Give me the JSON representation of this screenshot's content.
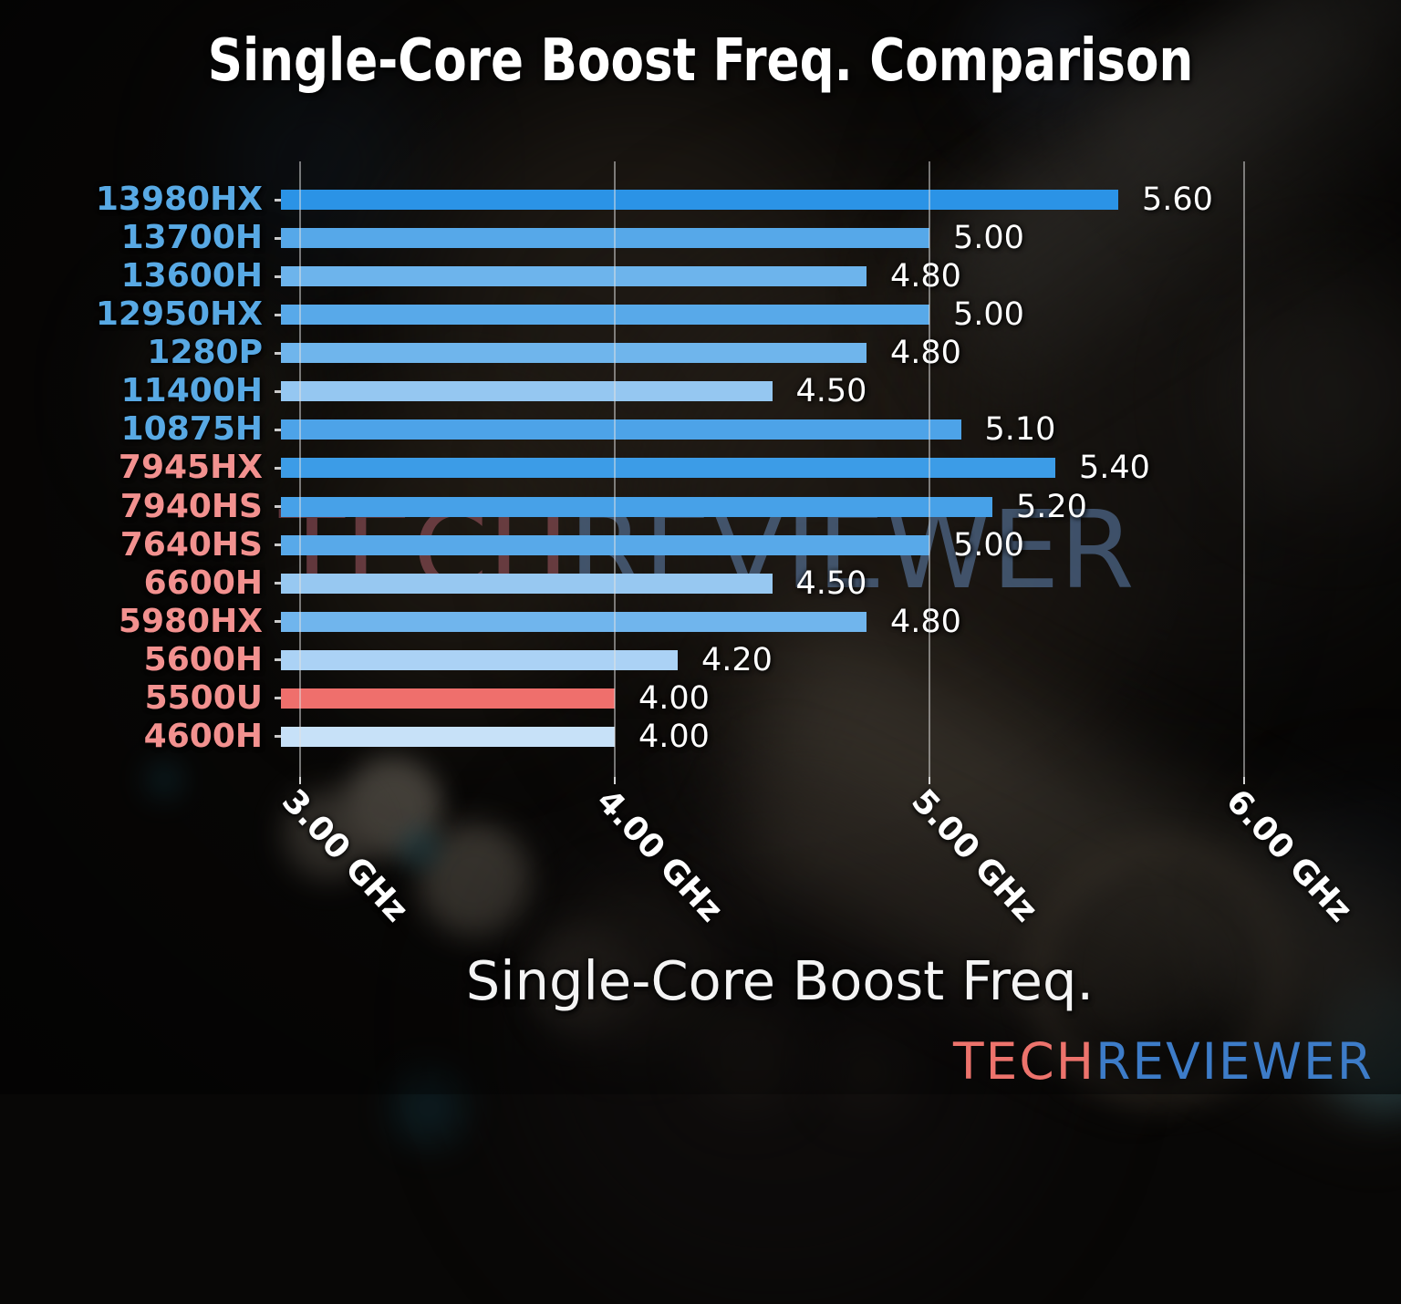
{
  "title": "Single-Core Boost Freq. Comparison",
  "watermark": {
    "part1": "TECH",
    "part2": "REVIEWER",
    "part1_color": "rgba(195,105,120,0.45)",
    "part2_color": "rgba(125,175,240,0.40)"
  },
  "logo": {
    "part1": "TECH",
    "part2": "REVIEWER",
    "part1_color": "#ED736C",
    "part2_color": "#3D7CC8"
  },
  "chart_data": {
    "type": "bar",
    "orientation": "horizontal",
    "title": "Single-Core Boost Freq. Comparison",
    "xlabel": "Single-Core Boost Freq.",
    "x_unit": "GHz",
    "xlim": [
      2.94,
      6.18
    ],
    "grid": true,
    "x_ticks": [
      {
        "value": 3.0,
        "label": "3.00 GHz"
      },
      {
        "value": 4.0,
        "label": "4.00 GHz"
      },
      {
        "value": 5.0,
        "label": "5.00 GHz"
      },
      {
        "value": 6.0,
        "label": "6.00 GHz"
      }
    ],
    "bars": [
      {
        "label": "13980HX",
        "value": 5.6,
        "value_label": "5.60",
        "vendor": "intel",
        "bar_color": "#2B93E6",
        "label_color": "#58A9E4"
      },
      {
        "label": "13700H",
        "value": 5.0,
        "value_label": "5.00",
        "vendor": "intel",
        "bar_color": "#56A8E9",
        "label_color": "#58A9E4"
      },
      {
        "label": "13600H",
        "value": 4.8,
        "value_label": "4.80",
        "vendor": "intel",
        "bar_color": "#6DB4EC",
        "label_color": "#58A9E4"
      },
      {
        "label": "12950HX",
        "value": 5.0,
        "value_label": "5.00",
        "vendor": "intel",
        "bar_color": "#58A9E9",
        "label_color": "#58A9E4"
      },
      {
        "label": "1280P",
        "value": 4.8,
        "value_label": "4.80",
        "vendor": "intel",
        "bar_color": "#6FB5EC",
        "label_color": "#58A9E4"
      },
      {
        "label": "11400H",
        "value": 4.5,
        "value_label": "4.50",
        "vendor": "intel",
        "bar_color": "#95C7F1",
        "label_color": "#58A9E4"
      },
      {
        "label": "10875H",
        "value": 5.1,
        "value_label": "5.10",
        "vendor": "intel",
        "bar_color": "#4DA3E8",
        "label_color": "#58A9E4"
      },
      {
        "label": "7945HX",
        "value": 5.4,
        "value_label": "5.40",
        "vendor": "amd",
        "bar_color": "#3C9CE7",
        "label_color": "#F2918F"
      },
      {
        "label": "7940HS",
        "value": 5.2,
        "value_label": "5.20",
        "vendor": "amd",
        "bar_color": "#47A1E8",
        "label_color": "#F2918F"
      },
      {
        "label": "7640HS",
        "value": 5.0,
        "value_label": "5.00",
        "vendor": "amd",
        "bar_color": "#58A9E9",
        "label_color": "#F2918F"
      },
      {
        "label": "6600H",
        "value": 4.5,
        "value_label": "4.50",
        "vendor": "amd",
        "bar_color": "#97C8F1",
        "label_color": "#F2918F"
      },
      {
        "label": "5980HX",
        "value": 4.8,
        "value_label": "4.80",
        "vendor": "amd",
        "bar_color": "#70B5ED",
        "label_color": "#F2918F"
      },
      {
        "label": "5600H",
        "value": 4.2,
        "value_label": "4.20",
        "vendor": "amd",
        "bar_color": "#ABD2F5",
        "label_color": "#F2918F"
      },
      {
        "label": "5500U",
        "value": 4.0,
        "value_label": "4.00",
        "vendor": "amd",
        "bar_color": "#EF6F6C",
        "label_color": "#F2918F"
      },
      {
        "label": "4600H",
        "value": 4.0,
        "value_label": "4.00",
        "vendor": "amd",
        "bar_color": "#C7E1F8",
        "label_color": "#F2918F"
      }
    ]
  }
}
